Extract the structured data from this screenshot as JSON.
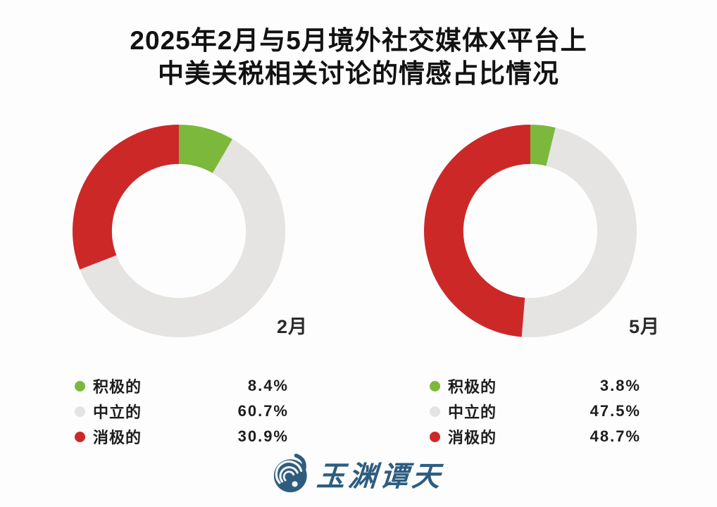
{
  "page": {
    "background": "#fdfdfd"
  },
  "title": {
    "line1": "2025年2月与5月境外社交媒体X平台上",
    "line2": "中美关税相关讨论的情感占比情况"
  },
  "palette": {
    "positive": "#7cb83c",
    "neutral": "#e5e4e2",
    "negative": "#cd2828",
    "logo_blue": "#2d5c80",
    "text": "#1d1d1d"
  },
  "chart_data": [
    {
      "type": "pie",
      "variant": "donut",
      "title": "2月",
      "start_angle_deg": 0,
      "direction": "clockwise",
      "inner_radius_ratio": 0.63,
      "legend_position": "bottom",
      "categories": [
        "积极的",
        "中立的",
        "消极的"
      ],
      "series": [
        {
          "name": "积极的",
          "value": 8.4,
          "display": "8.4%",
          "color": "#7cb83c"
        },
        {
          "name": "中立的",
          "value": 60.7,
          "display": "60.7%",
          "color": "#e5e4e2"
        },
        {
          "name": "消极的",
          "value": 30.9,
          "display": "30.9%",
          "color": "#cd2828"
        }
      ]
    },
    {
      "type": "pie",
      "variant": "donut",
      "title": "5月",
      "start_angle_deg": 0,
      "direction": "clockwise",
      "inner_radius_ratio": 0.63,
      "legend_position": "bottom",
      "categories": [
        "积极的",
        "中立的",
        "消极的"
      ],
      "series": [
        {
          "name": "积极的",
          "value": 3.8,
          "display": "3.8%",
          "color": "#7cb83c"
        },
        {
          "name": "中立的",
          "value": 47.5,
          "display": "47.5%",
          "color": "#e5e4e2"
        },
        {
          "name": "消极的",
          "value": 48.7,
          "display": "48.7%",
          "color": "#cd2828"
        }
      ]
    }
  ],
  "footer": {
    "brand": "玉渊谭天"
  }
}
